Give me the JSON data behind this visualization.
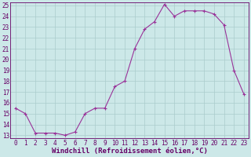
{
  "x": [
    0,
    1,
    2,
    3,
    4,
    5,
    6,
    7,
    8,
    9,
    10,
    11,
    12,
    13,
    14,
    15,
    16,
    17,
    18,
    19,
    20,
    21,
    22,
    23
  ],
  "y": [
    15.5,
    15.0,
    13.2,
    13.2,
    13.2,
    13.0,
    13.3,
    15.0,
    15.5,
    15.5,
    17.5,
    18.0,
    21.0,
    22.8,
    23.5,
    25.1,
    24.0,
    24.5,
    24.5,
    24.5,
    24.2,
    23.2,
    19.0,
    16.8
  ],
  "line_color": "#993399",
  "marker": "+",
  "marker_size": 3,
  "marker_linewidth": 0.8,
  "linewidth": 0.8,
  "background_color": "#cce8e8",
  "grid_color": "#aacccc",
  "xlabel": "Windchill (Refroidissement éolien,°C)",
  "ylim": [
    13,
    25
  ],
  "xlim": [
    -0.5,
    23.5
  ],
  "yticks": [
    13,
    14,
    15,
    16,
    17,
    18,
    19,
    20,
    21,
    22,
    23,
    24,
    25
  ],
  "xticks": [
    0,
    1,
    2,
    3,
    4,
    5,
    6,
    7,
    8,
    9,
    10,
    11,
    12,
    13,
    14,
    15,
    16,
    17,
    18,
    19,
    20,
    21,
    22,
    23
  ],
  "axis_fontsize": 5.5,
  "xlabel_fontsize": 6.5,
  "tick_color": "#660066",
  "spine_color": "#660066"
}
